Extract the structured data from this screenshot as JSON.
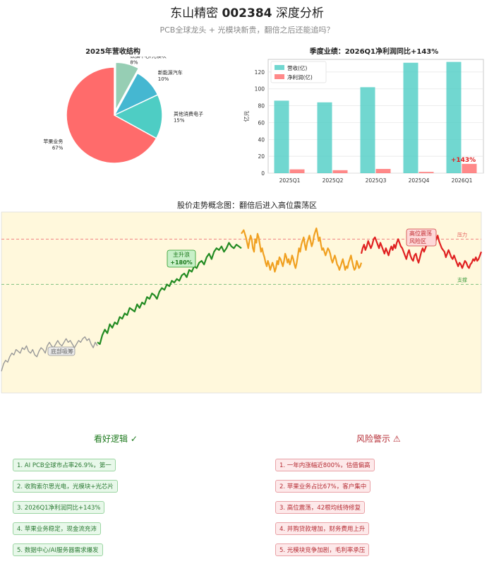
{
  "header": {
    "title_prefix": "东山精密 ",
    "title_code": "002384",
    "title_suffix": " 深度分析",
    "subtitle": "PCB全球龙头 + 光模块新贵，翻倍之后还能追吗？"
  },
  "chart_data": [
    {
      "type": "pie",
      "title": "2025年营收结构",
      "slices": [
        {
          "label": "苹果业务",
          "pct_label": "67%",
          "value": 67,
          "color": "#ff6b6b"
        },
        {
          "label": "其他消费电子",
          "pct_label": "15%",
          "value": 15,
          "color": "#4ecdc4"
        },
        {
          "label": "新能源汽车",
          "pct_label": "10%",
          "value": 10,
          "color": "#45b7d1"
        },
        {
          "label": "数据中心/光模块",
          "pct_label": "8%",
          "value": 8,
          "color": "#96ceb4"
        }
      ]
    },
    {
      "type": "bar",
      "title": "季度业绩：2026Q1净利润同比+143%",
      "categories": [
        "2025Q1",
        "2025Q2",
        "2025Q3",
        "2025Q4",
        "2026Q1"
      ],
      "series": [
        {
          "name": "营收(亿)",
          "values": [
            86,
            84,
            102,
            131,
            132
          ],
          "color": "#4ecdc4"
        },
        {
          "name": "净利润(亿)",
          "values": [
            4.5,
            3.5,
            5,
            1.5,
            11
          ],
          "color": "#ff6b6b"
        }
      ],
      "ylabel": "亿元",
      "ylim": [
        0,
        135
      ],
      "yticks": [
        0,
        20,
        40,
        60,
        80,
        100,
        120
      ],
      "legend": "top-left",
      "annotation": "+143%",
      "annotation_color": "#e02020"
    },
    {
      "type": "line",
      "title": "股价走势概念图：翻倍后进入高位震荡区",
      "ylim": [
        0,
        100
      ],
      "background": "#fff8dc",
      "resistance_level": 85,
      "support_level": 60,
      "resistance_label": "压力",
      "support_label": "支撑",
      "segments": [
        {
          "name": "底部",
          "color": "#999999",
          "values": [
            12,
            16,
            18,
            17,
            20,
            22,
            21,
            24,
            23,
            22,
            25,
            24,
            26,
            23,
            22,
            24,
            21,
            20,
            23,
            25,
            24,
            22,
            26,
            28,
            26,
            25,
            27,
            29,
            27,
            26,
            28,
            30,
            28,
            29,
            27,
            25,
            27,
            29,
            28,
            30,
            31,
            29,
            30,
            27,
            25,
            28,
            26
          ]
        },
        {
          "name": "主升浪",
          "color": "#228b22",
          "values": [
            28,
            27,
            32,
            35,
            33,
            38,
            36,
            39,
            38,
            42,
            41,
            44,
            43,
            47,
            46,
            45,
            49,
            47,
            50,
            49,
            53,
            52,
            55,
            54,
            52,
            56,
            58,
            57,
            60,
            59,
            62,
            61,
            63,
            62,
            65,
            66,
            64,
            68,
            67,
            70,
            69,
            72,
            73,
            71,
            75,
            77,
            74,
            78,
            80,
            79,
            81,
            78,
            80,
            83,
            81,
            80,
            82,
            81,
            80
          ]
        },
        {
          "name": "高位震荡1",
          "color": "#f0a020",
          "values": [
            88,
            89,
            90,
            88,
            86,
            83,
            80,
            84,
            87,
            85,
            80,
            78,
            85,
            83,
            88,
            86,
            82,
            78,
            80,
            77,
            75,
            72,
            70,
            73,
            71,
            68,
            70,
            72,
            70,
            67,
            69,
            73,
            71,
            75,
            74,
            72,
            70,
            73,
            77,
            75,
            72,
            74,
            71,
            73,
            76,
            74,
            71,
            69,
            72,
            76,
            80,
            78,
            82,
            84,
            86,
            82,
            79,
            83,
            85,
            87,
            84,
            81,
            83,
            87,
            89,
            91,
            88,
            84,
            86,
            82,
            79,
            80,
            78,
            76,
            78,
            80,
            79,
            77,
            74,
            72,
            74,
            76,
            74,
            71,
            70,
            68,
            70,
            72,
            74,
            71,
            68,
            70,
            69,
            72,
            74,
            76,
            73,
            70,
            68,
            69,
            73,
            71,
            69,
            70,
            72
          ]
        },
        {
          "name": "高位震荡2",
          "color": "#e02020",
          "values": [
            77,
            80,
            82,
            79,
            81,
            84,
            82,
            80,
            82,
            85,
            86,
            84,
            82,
            80,
            83,
            81,
            79,
            77,
            80,
            78,
            76,
            79,
            81,
            79,
            82,
            80,
            83,
            85,
            83,
            81,
            80,
            78,
            76,
            74,
            77,
            79,
            76,
            74,
            73,
            76,
            77,
            74,
            72,
            75,
            78,
            80,
            78,
            80,
            82,
            84,
            86,
            84,
            87,
            85,
            83,
            85,
            87,
            84,
            82,
            80,
            79,
            78,
            75,
            77,
            79,
            77,
            75,
            74,
            76,
            74,
            72,
            70,
            72,
            71,
            69,
            71,
            73,
            72,
            70,
            69,
            71,
            72,
            74,
            73,
            75,
            73,
            74,
            76,
            78
          ]
        }
      ],
      "annotations": [
        {
          "label": "底部吸筹",
          "color": "#666666"
        },
        {
          "label": "主升浪\n+180%",
          "color": "#1e7a1e"
        },
        {
          "label": "高位震荡\n风险区",
          "color": "#c0272d"
        }
      ]
    }
  ],
  "bullish": {
    "title": "看好逻辑 ✓",
    "items": [
      "1. AI PCB全球市占率26.9%，第一",
      "2. 收购索尔思光电，光模块+光芯片",
      "3. 2026Q1净利润同比+143%",
      "4. 苹果业务稳定，现金流充沛",
      "5. 数据中心/AI服务器需求爆发"
    ]
  },
  "risk": {
    "title": "风险警示 ⚠",
    "items": [
      "1. 一年内涨幅近800%，估值偏高",
      "2. 苹果业务占比67%，客户集中",
      "3. 高位震荡，42根均线待修复",
      "4. 并购贷款增加，财务费用上升",
      "5. 光模块竞争加剧，毛利率承压"
    ]
  }
}
